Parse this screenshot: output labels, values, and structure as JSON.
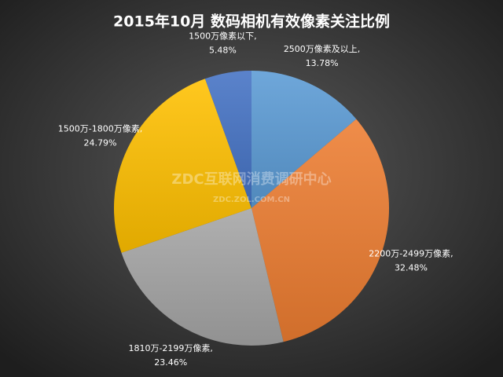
{
  "chart_data": {
    "type": "pie",
    "title": "2015年10月  数码相机有效像素关注比例",
    "categories": [
      "2500万像素及以上,",
      "2200万-2499万像素,",
      "1810万-2199万像素,",
      "1500万-1800万像素,",
      "1500万像素以下,"
    ],
    "values": [
      13.78,
      32.48,
      23.46,
      24.79,
      5.48
    ],
    "value_labels": [
      "13.78%",
      "32.48%",
      "23.46%",
      "24.79%",
      "5.48%"
    ],
    "colors": [
      "#5b9bd5",
      "#ed7d31",
      "#a5a5a5",
      "#ffc000",
      "#4472c4"
    ],
    "watermark": "ZDC互联网消费调研中心",
    "watermark_url": "ZDC.ZOL.COM.CN"
  }
}
